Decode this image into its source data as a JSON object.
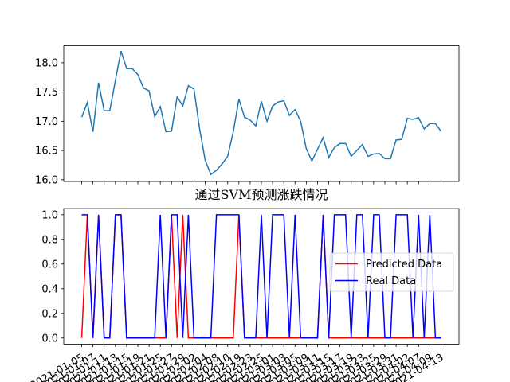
{
  "chart_data": [
    {
      "type": "line",
      "title": "",
      "xlabel": "",
      "ylabel": "",
      "ylim": [
        15.97,
        18.29
      ],
      "yticks": [
        "16.0",
        "16.5",
        "17.0",
        "17.5",
        "18.0"
      ],
      "grid": false,
      "series": [
        {
          "color": "#1f77b4",
          "values": [
            17.07,
            17.32,
            16.82,
            17.66,
            17.18,
            17.18,
            17.7,
            18.2,
            17.9,
            17.9,
            17.8,
            17.57,
            17.52,
            17.08,
            17.25,
            16.82,
            16.83,
            17.42,
            17.26,
            17.61,
            17.55,
            16.87,
            16.33,
            16.09,
            16.16,
            16.27,
            16.4,
            16.82,
            17.38,
            17.07,
            17.02,
            16.92,
            17.34,
            17.0,
            17.26,
            17.33,
            17.35,
            17.1,
            17.2,
            17.0,
            16.53,
            16.32,
            16.52,
            16.72,
            16.38,
            16.55,
            16.62,
            16.62,
            16.4,
            16.5,
            16.6,
            16.4,
            16.44,
            16.45,
            16.36,
            16.36,
            16.68,
            16.69,
            17.05,
            17.03,
            17.06,
            16.87,
            16.96,
            16.96,
            16.83
          ]
        }
      ]
    },
    {
      "type": "line",
      "title": "通过SVM预测涨跌情况",
      "xlabel": "",
      "ylabel": "",
      "ylim": [
        -0.05,
        1.05
      ],
      "yticks": [
        "0.0",
        "0.2",
        "0.4",
        "0.6",
        "0.8",
        "1.0"
      ],
      "grid": false,
      "legend_position": "center-right",
      "x": [
        "2021-01-05",
        "2021-01-06",
        "2021-01-07",
        "2021-01-08",
        "2021-01-11",
        "2021-01-12",
        "2021-01-13",
        "2021-01-14",
        "2021-01-15",
        "2021-01-18",
        "2021-01-19",
        "2021-01-20",
        "2021-01-21",
        "2021-01-22",
        "2021-01-25",
        "2021-01-26",
        "2021-01-27",
        "2021-01-28",
        "2021-01-29",
        "2021-02-01",
        "2021-02-02",
        "2021-02-03",
        "2021-02-04",
        "2021-02-05",
        "2021-02-08",
        "2021-02-09",
        "2021-02-10",
        "2021-02-18",
        "2021-02-19",
        "2021-02-22",
        "2021-02-23",
        "2021-02-24",
        "2021-02-25",
        "2021-02-26",
        "2021-03-01",
        "2021-03-02",
        "2021-03-03",
        "2021-03-04",
        "2021-03-05",
        "2021-03-08",
        "2021-03-09",
        "2021-03-10",
        "2021-03-11",
        "2021-03-12",
        "2021-03-15",
        "2021-03-16",
        "2021-03-17",
        "2021-03-18",
        "2021-03-19",
        "2021-03-22",
        "2021-03-23",
        "2021-03-24",
        "2021-03-25",
        "2021-03-26",
        "2021-03-29",
        "2021-03-30",
        "2021-03-31",
        "2021-04-01",
        "2021-04-02",
        "2021-04-06",
        "2021-04-07",
        "2021-04-08",
        "2021-04-09",
        "2021-04-12",
        "2021-04-13"
      ],
      "xticklabels": [
        "2021-01-05",
        "2021-01-07",
        "2021-01-11",
        "2021-01-13",
        "2021-01-15",
        "2021-01-19",
        "2021-01-21",
        "2021-01-25",
        "2021-01-27",
        "2021-01-29",
        "2021-02-02",
        "2021-02-04",
        "2021-02-08",
        "2021-02-10",
        "2021-02-19",
        "2021-02-23",
        "2021-02-25",
        "2021-03-01",
        "2021-03-03",
        "2021-03-05",
        "2021-03-09",
        "2021-03-11",
        "2021-03-15",
        "2021-03-17",
        "2021-03-19",
        "2021-03-23",
        "2021-03-25",
        "2021-03-29",
        "2021-03-31",
        "2021-04-02",
        "2021-04-07",
        "2021-04-09",
        "2021-04-13"
      ],
      "series": [
        {
          "name": "Predicted Data",
          "color": "#ff0000",
          "values": [
            0,
            1,
            0,
            1,
            0,
            0,
            1,
            1,
            0,
            0,
            0,
            0,
            0,
            0,
            0,
            0,
            1,
            0,
            1,
            0,
            0,
            0,
            0,
            0,
            0,
            0,
            0,
            0,
            1,
            0,
            0,
            0,
            0,
            0,
            0,
            0,
            0,
            0,
            0,
            0,
            0,
            0,
            0,
            1,
            0,
            0,
            0,
            0,
            0,
            0,
            0,
            0,
            0,
            0,
            0,
            0,
            0,
            0,
            0,
            0,
            0,
            0,
            0,
            0,
            0
          ]
        },
        {
          "name": "Real Data",
          "color": "#0000ff",
          "values": [
            1,
            1,
            0,
            1,
            0,
            0,
            1,
            1,
            0,
            0,
            0,
            0,
            0,
            0,
            1,
            0,
            1,
            1,
            0,
            1,
            0,
            0,
            0,
            0,
            1,
            1,
            1,
            1,
            1,
            0,
            0,
            0,
            1,
            0,
            1,
            1,
            1,
            0,
            1,
            0,
            0,
            0,
            0,
            1,
            0,
            1,
            1,
            1,
            0,
            1,
            1,
            0,
            1,
            1,
            0,
            0,
            1,
            1,
            1,
            0,
            1,
            0,
            1,
            0,
            0
          ]
        }
      ]
    }
  ]
}
